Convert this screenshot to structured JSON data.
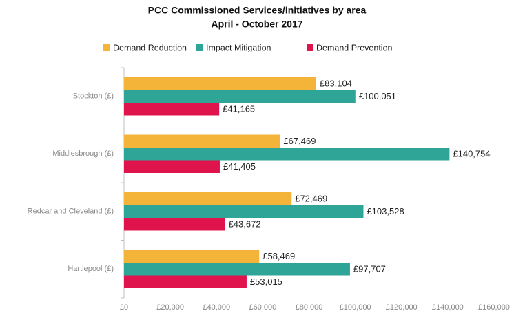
{
  "chart_data": {
    "type": "bar",
    "orientation": "horizontal",
    "title": "PCC Commissioned Services/initiatives by area",
    "subtitle": "April - October 2017",
    "categories": [
      "Stockton (£)",
      "Middlesbrough (£)",
      "Redcar and Cleveland (£)",
      "Hartlepool (£)"
    ],
    "series": [
      {
        "name": "Demand Reduction",
        "color": "#f4b43a",
        "values": [
          83104,
          67469,
          72469,
          58469
        ],
        "value_labels": [
          "£83,104",
          "£67,469",
          "£72,469",
          "£58,469"
        ]
      },
      {
        "name": "Impact Mitigation",
        "color": "#2ea596",
        "values": [
          100051,
          140754,
          103528,
          97707
        ],
        "value_labels": [
          "£100,051",
          "£140,754",
          "£103,528",
          "£97,707"
        ]
      },
      {
        "name": "Demand Prevention",
        "color": "#e0144c",
        "values": [
          41165,
          41405,
          43672,
          53015
        ],
        "value_labels": [
          "£41,165",
          "£41,405",
          "£43,672",
          "£53,015"
        ]
      }
    ],
    "xlim": [
      0,
      160000
    ],
    "xticks": [
      {
        "value": 0,
        "label": "£0"
      },
      {
        "value": 20000,
        "label": "£20,000"
      },
      {
        "value": 40000,
        "label": "£40,000"
      },
      {
        "value": 60000,
        "label": "£60,000"
      },
      {
        "value": 80000,
        "label": "£80,000"
      },
      {
        "value": 100000,
        "label": "£100,000"
      },
      {
        "value": 120000,
        "label": "£120,000"
      },
      {
        "value": 140000,
        "label": "£140,000"
      },
      {
        "value": 160000,
        "label": "£160,000"
      }
    ],
    "legend": "top"
  }
}
